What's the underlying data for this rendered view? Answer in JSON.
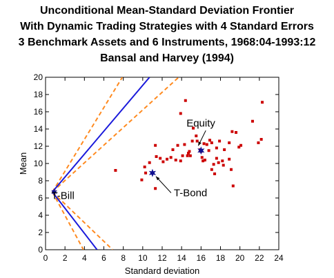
{
  "chart_data": {
    "type": "scatter",
    "title_lines": [
      "Unconditional Mean-Standard Deviation Frontier",
      "With Dynamic Trading Strategies with 4 Standard Errors",
      "3 Benchmark Assets and 6 Instruments, 1968:04-1993:12",
      "Bansal and Harvey (1994)"
    ],
    "xlabel": "Standard deviation",
    "ylabel": "Mean",
    "xlim": [
      0,
      24
    ],
    "ylim": [
      0,
      20
    ],
    "xticks": [
      0,
      2,
      4,
      6,
      8,
      10,
      12,
      14,
      16,
      18,
      20,
      22,
      24
    ],
    "yticks": [
      0,
      2,
      4,
      6,
      8,
      10,
      12,
      14,
      16,
      18,
      20
    ],
    "colors": {
      "points": "#cc0000",
      "frontier": "#1a1adb",
      "bands": "#ff8a1f",
      "benchmarks": "#101090"
    },
    "frontier": {
      "upper": [
        [
          0.7,
          6.7
        ],
        [
          10.7,
          20
        ]
      ],
      "lower": [
        [
          0.7,
          6.7
        ],
        [
          5.3,
          0
        ]
      ]
    },
    "bands": {
      "upper_outer": [
        [
          0.7,
          6.7
        ],
        [
          7.9,
          20
        ]
      ],
      "upper_inner": [
        [
          0.7,
          6.7
        ],
        [
          13.7,
          20
        ]
      ],
      "lower_outer": [
        [
          0.7,
          6.7
        ],
        [
          3.9,
          0
        ]
      ],
      "lower_inner": [
        [
          0.7,
          6.7
        ],
        [
          6.9,
          0
        ]
      ]
    },
    "dynamic_strategies": [
      [
        7.2,
        9.2
      ],
      [
        9.9,
        8.1
      ],
      [
        10.2,
        9.6
      ],
      [
        10.7,
        10.1
      ],
      [
        11.3,
        7.1
      ],
      [
        11.4,
        10.8
      ],
      [
        11.8,
        10.6
      ],
      [
        11.3,
        12.1
      ],
      [
        12.1,
        10.2
      ],
      [
        12.9,
        10.7
      ],
      [
        13.1,
        11.6
      ],
      [
        13.6,
        12.1
      ],
      [
        13.9,
        15.8
      ],
      [
        13.9,
        10.3
      ],
      [
        14.3,
        12.2
      ],
      [
        14.6,
        10.9
      ],
      [
        14.8,
        11.4
      ],
      [
        14.9,
        10.9
      ],
      [
        15.1,
        12.6
      ],
      [
        15.5,
        13.2
      ],
      [
        15.6,
        12.6
      ],
      [
        15.9,
        11.6
      ],
      [
        16.1,
        10.7
      ],
      [
        16.2,
        10.3
      ],
      [
        16.4,
        10.4
      ],
      [
        16.6,
        12.2
      ],
      [
        16.8,
        11.5
      ],
      [
        16.9,
        12.7
      ],
      [
        17.1,
        12.4
      ],
      [
        17.3,
        9.9
      ],
      [
        17.1,
        9.3
      ],
      [
        17.4,
        8.8
      ],
      [
        17.6,
        10.6
      ],
      [
        17.9,
        12.6
      ],
      [
        18.2,
        10.3
      ],
      [
        18.3,
        9.8
      ],
      [
        18.4,
        11.6
      ],
      [
        18.9,
        10.5
      ],
      [
        19.1,
        9.3
      ],
      [
        19.2,
        13.7
      ],
      [
        19.3,
        7.4
      ],
      [
        19.6,
        13.6
      ],
      [
        19.9,
        11.9
      ],
      [
        20.1,
        12.1
      ],
      [
        21.3,
        14.9
      ],
      [
        21.9,
        12.4
      ],
      [
        22.2,
        12.8
      ],
      [
        22.3,
        17.1
      ],
      [
        14.4,
        17.3
      ],
      [
        15.2,
        14.1
      ],
      [
        14.7,
        11.2
      ],
      [
        13.4,
        10.4
      ],
      [
        16.0,
        11.4
      ],
      [
        17.6,
        11.8
      ],
      [
        18.9,
        12.4
      ],
      [
        14.1,
        10.9
      ],
      [
        10.3,
        8.9
      ],
      [
        12.5,
        10.5
      ],
      [
        16.3,
        12.3
      ],
      [
        17.8,
        10.1
      ]
    ],
    "benchmarks": [
      {
        "label": "Equity",
        "x": 16.0,
        "y": 11.5,
        "label_pos": [
          14.5,
          14.3
        ]
      },
      {
        "label": "T-Bond",
        "x": 11.0,
        "y": 8.9,
        "label_pos": [
          13.2,
          6.2
        ]
      },
      {
        "label": "T-Bill",
        "x": 0.9,
        "y": 6.7,
        "label_pos": [
          0.6,
          5.9
        ]
      }
    ]
  }
}
